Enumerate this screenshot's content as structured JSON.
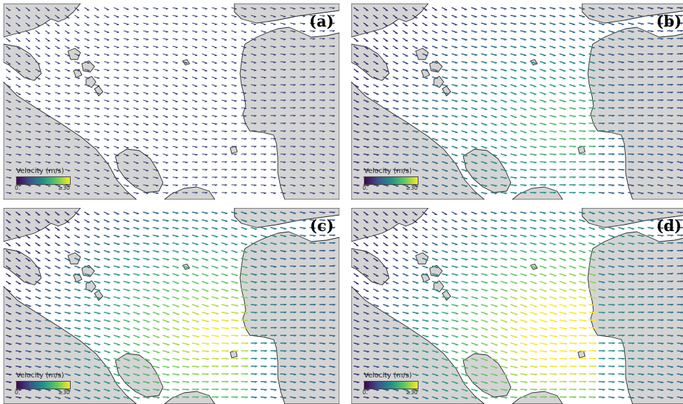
{
  "colorbar": {
    "title": "Velocity (m/s)",
    "min_label": "0.",
    "max_label": "≥30",
    "colormap": "viridis",
    "vmin": 0,
    "vmax": 30
  },
  "colors": {
    "land": "#d4d4d4",
    "land_border": "#222222",
    "sea": "#ffffff"
  },
  "panels": [
    {
      "label": "(a)",
      "intensity": 0.0
    },
    {
      "label": "(b)",
      "intensity": 0.55
    },
    {
      "label": "(c)",
      "intensity": 0.85
    },
    {
      "label": "(d)",
      "intensity": 1.0
    }
  ]
}
